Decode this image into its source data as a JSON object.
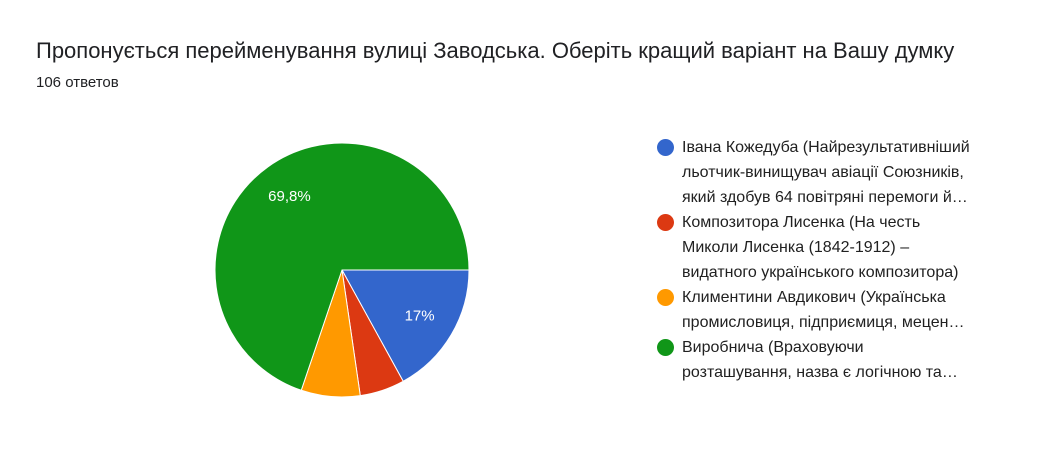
{
  "chart_data": {
    "type": "pie",
    "title": "Пропонується перейменування вулиці Заводська. Оберіть кращий варіант на Вашу думку",
    "subtitle": "106 ответов",
    "categories": [
      "Івана Кожедуба (Найрезультативніший\nльотчик-винищувач авіації Союзників,\nякий здобув 64 повітряні перемоги й…",
      "Композитора Лисенка (На честь\nМиколи Лисенка (1842-1912) –\nвидатного українського композитора)",
      "Климентини Авдикович (Українська\nпромисловиця, підприємиця, мецен…",
      "Виробнича (Враховуючи\nрозташування, назва є логічною та…"
    ],
    "values": [
      17.0,
      5.7,
      7.5,
      69.8
    ],
    "data_labels": [
      "17%",
      "",
      "",
      "69,8%"
    ],
    "colors": [
      "#3366cc",
      "#dc3912",
      "#ff9900",
      "#109618"
    ],
    "legend_position": "right"
  }
}
